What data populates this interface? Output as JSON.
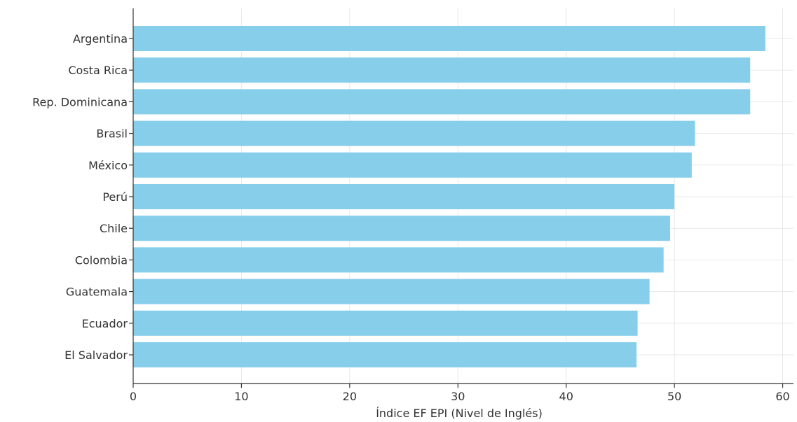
{
  "chart_data": {
    "type": "bar",
    "orientation": "horizontal",
    "title": "",
    "xlabel": "Índice EF EPI (Nivel de Inglés)",
    "ylabel": "",
    "xlim": [
      0,
      61
    ],
    "xticks": [
      0,
      10,
      20,
      30,
      40,
      50,
      60
    ],
    "grid": true,
    "categories": [
      "Argentina",
      "Costa Rica",
      "Rep. Dominicana",
      "Brasil",
      "México",
      "Perú",
      "Chile",
      "Colombia",
      "Guatemala",
      "Ecuador",
      "El Salvador"
    ],
    "values": [
      58.4,
      57.0,
      57.0,
      51.9,
      51.6,
      50.0,
      49.6,
      49.0,
      47.7,
      46.6,
      46.5
    ],
    "colors": {
      "bar": "#87ceeb",
      "axis": "#333333",
      "grid": "#e8e8e8"
    }
  }
}
